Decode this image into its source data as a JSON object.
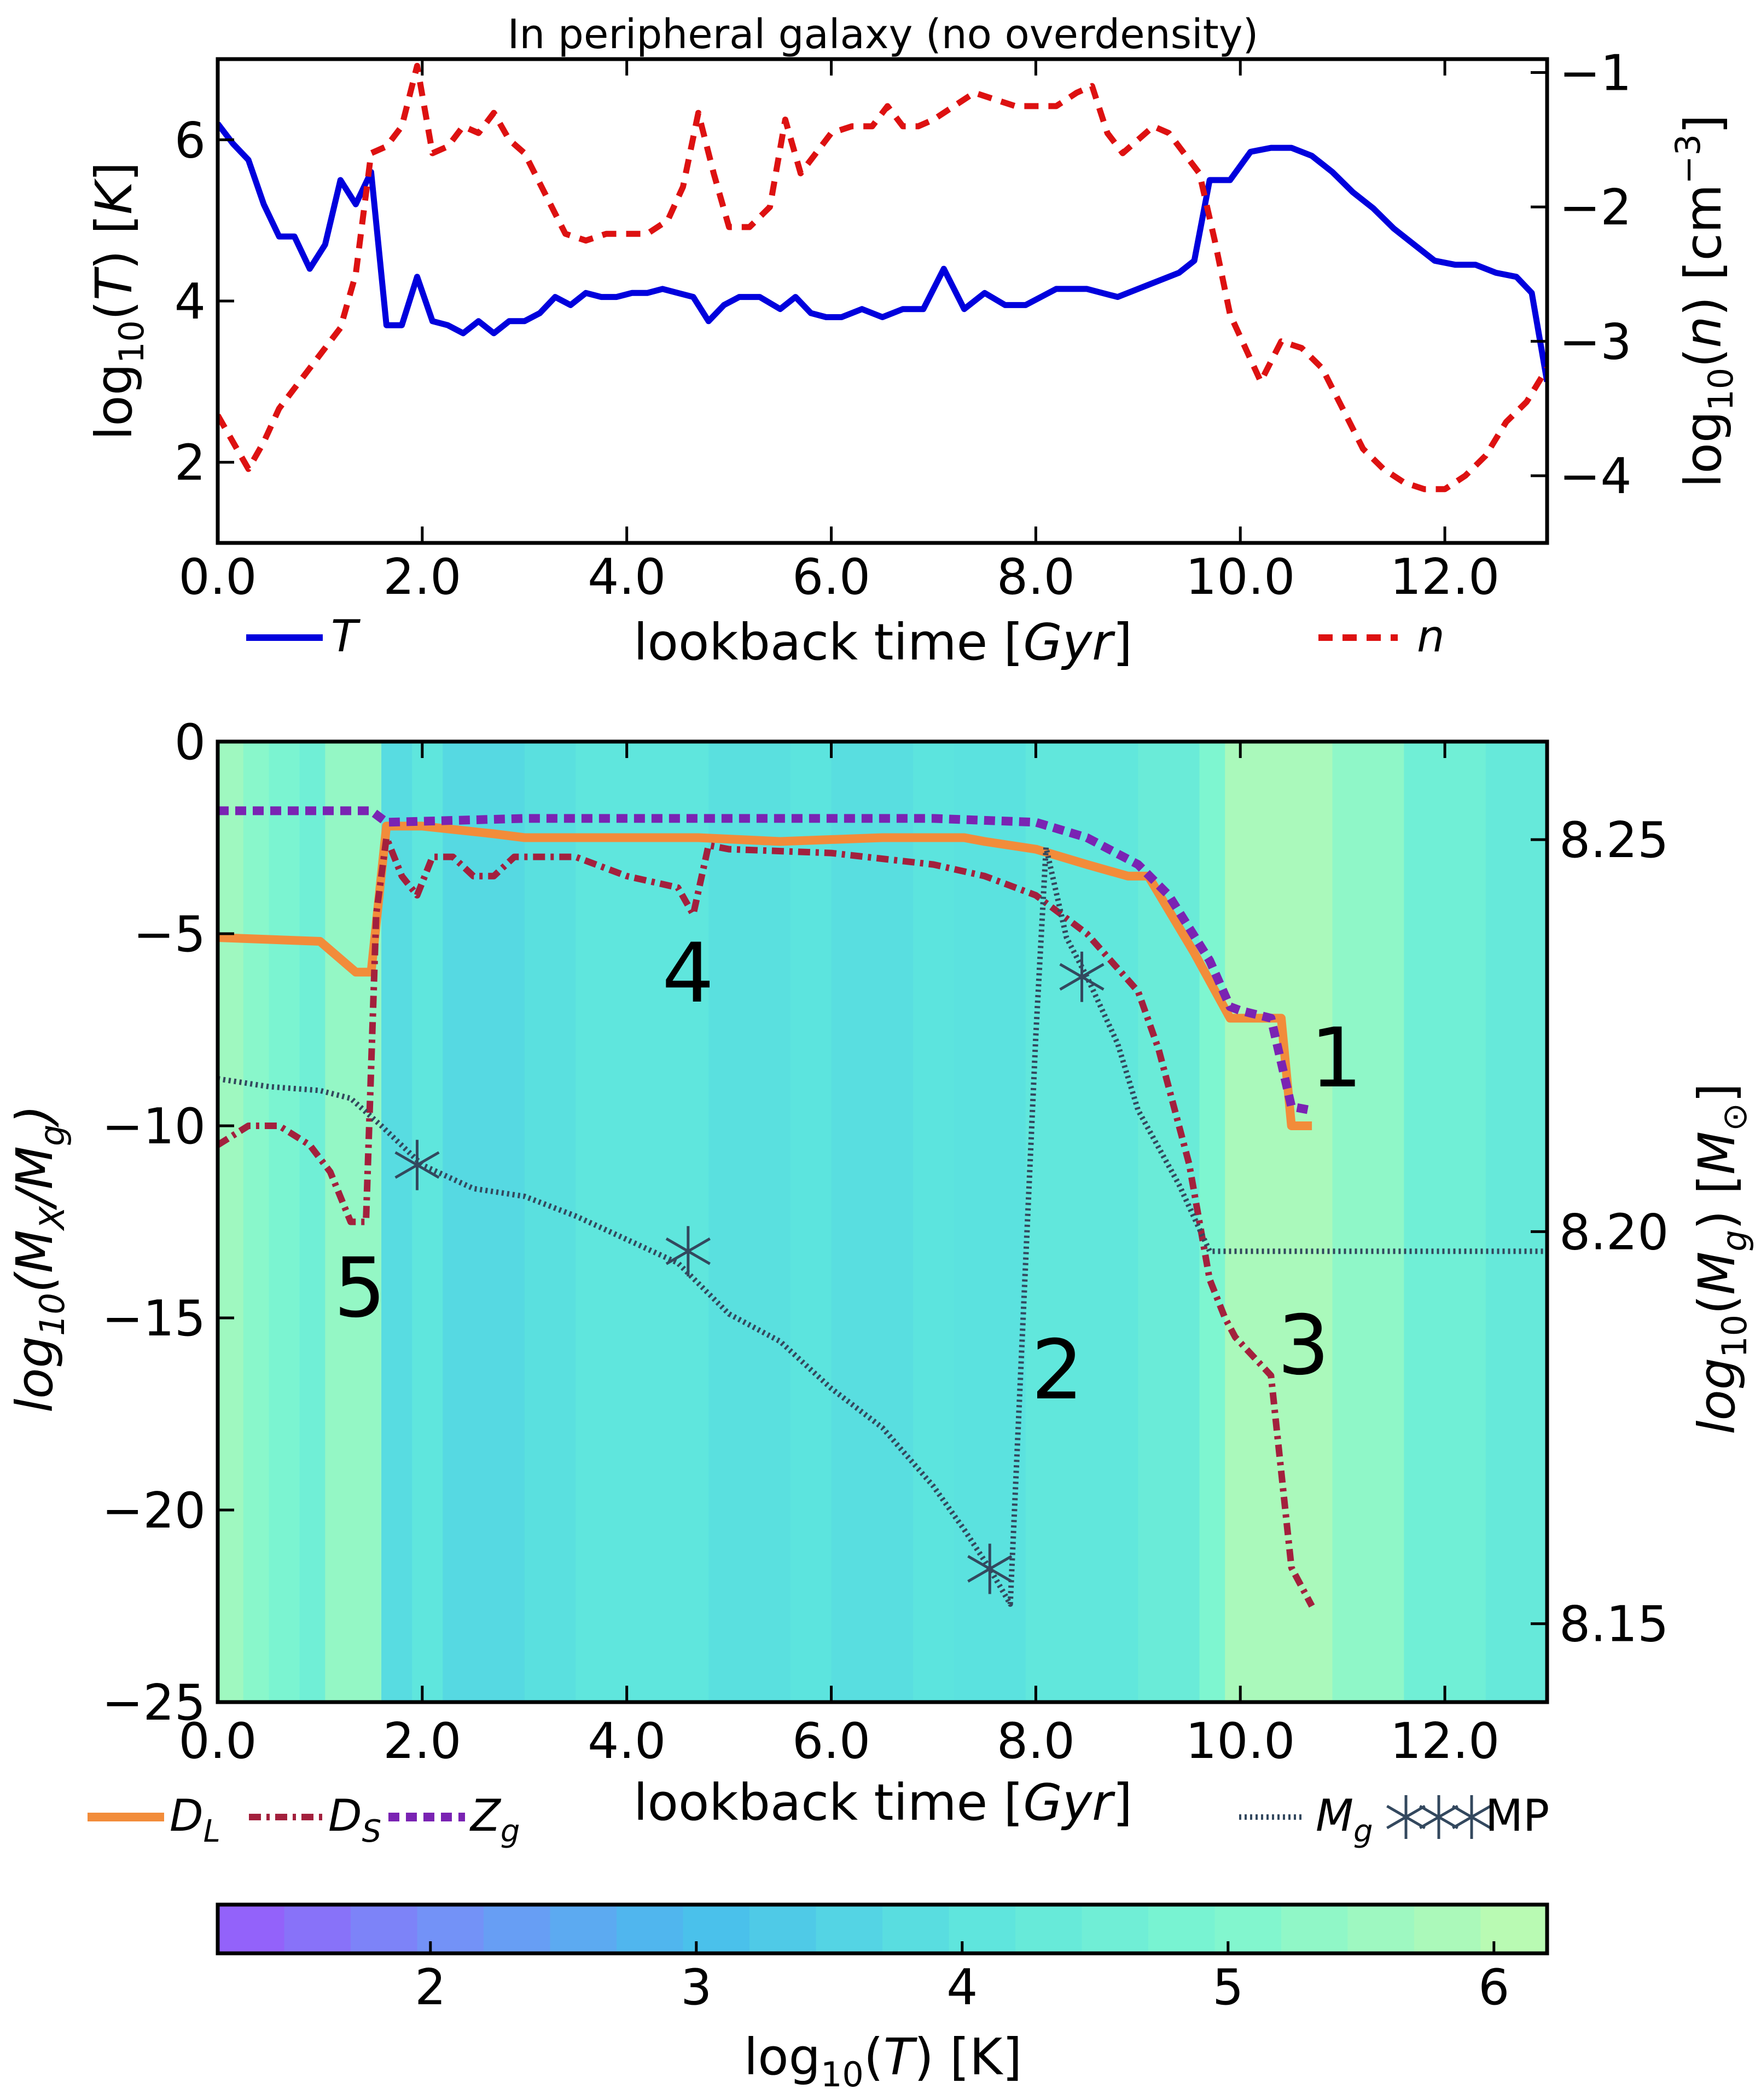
{
  "chart_data": [
    {
      "type": "line",
      "title": "In peripheral galaxy (no overdensity)",
      "xlabel": "lookback time [Gyr]",
      "ylabel": "log10(T) [K]",
      "y2label": "log10(n) [cm^-3]",
      "xlim": [
        0,
        13
      ],
      "ylim": [
        1,
        7
      ],
      "y2lim": [
        -4.5,
        -0.9
      ],
      "xticks": [
        "0.0",
        "2.0",
        "4.0",
        "6.0",
        "8.0",
        "10.0",
        "12.0"
      ],
      "yticks": [
        "2",
        "4",
        "6"
      ],
      "y2ticks": [
        "−1",
        "−2",
        "−3",
        "−4"
      ],
      "grid": false,
      "legend": "below",
      "series": [
        {
          "name": "T",
          "axis": "left",
          "color": "#0000dd",
          "style": "solid",
          "x": [
            0,
            0.15,
            0.3,
            0.45,
            0.6,
            0.75,
            0.9,
            1.05,
            1.2,
            1.35,
            1.5,
            1.65,
            1.8,
            1.95,
            2.1,
            2.25,
            2.4,
            2.55,
            2.7,
            2.85,
            3.0,
            3.15,
            3.3,
            3.45,
            3.6,
            3.75,
            3.9,
            4.05,
            4.2,
            4.35,
            4.5,
            4.65,
            4.8,
            4.95,
            5.1,
            5.3,
            5.5,
            5.65,
            5.8,
            5.95,
            6.1,
            6.3,
            6.5,
            6.7,
            6.9,
            7.1,
            7.3,
            7.5,
            7.7,
            7.9,
            8.2,
            8.5,
            8.8,
            9.1,
            9.4,
            9.55,
            9.7,
            9.9,
            10.1,
            10.3,
            10.5,
            10.7,
            10.9,
            11.1,
            11.3,
            11.5,
            11.7,
            11.9,
            12.1,
            12.3,
            12.5,
            12.7,
            12.85,
            13.0
          ],
          "values": [
            6.2,
            5.95,
            5.75,
            5.2,
            4.8,
            4.8,
            4.4,
            4.7,
            5.5,
            5.2,
            5.6,
            3.7,
            3.7,
            4.3,
            3.75,
            3.7,
            3.6,
            3.75,
            3.6,
            3.75,
            3.75,
            3.85,
            4.05,
            3.95,
            4.1,
            4.05,
            4.05,
            4.1,
            4.1,
            4.15,
            4.1,
            4.05,
            3.75,
            3.95,
            4.05,
            4.05,
            3.9,
            4.05,
            3.85,
            3.8,
            3.8,
            3.9,
            3.8,
            3.9,
            3.9,
            4.4,
            3.9,
            4.1,
            3.95,
            3.95,
            4.15,
            4.15,
            4.05,
            4.2,
            4.35,
            4.5,
            5.5,
            5.5,
            5.85,
            5.9,
            5.9,
            5.8,
            5.6,
            5.35,
            5.15,
            4.9,
            4.7,
            4.5,
            4.45,
            4.45,
            4.35,
            4.3,
            4.1,
            3.0
          ]
        },
        {
          "name": "n",
          "axis": "right",
          "color": "#dd1111",
          "style": "dashed",
          "x": [
            0,
            0.15,
            0.3,
            0.45,
            0.6,
            0.75,
            0.9,
            1.05,
            1.2,
            1.35,
            1.5,
            1.65,
            1.8,
            1.95,
            2.1,
            2.25,
            2.4,
            2.55,
            2.7,
            2.85,
            3.0,
            3.2,
            3.4,
            3.6,
            3.8,
            4.0,
            4.2,
            4.4,
            4.55,
            4.7,
            4.85,
            5.0,
            5.2,
            5.4,
            5.55,
            5.7,
            5.85,
            6.0,
            6.2,
            6.4,
            6.55,
            6.7,
            6.85,
            7.0,
            7.2,
            7.4,
            7.6,
            7.8,
            8.0,
            8.2,
            8.4,
            8.55,
            8.7,
            8.85,
            9.0,
            9.15,
            9.3,
            9.45,
            9.6,
            9.75,
            9.9,
            10.05,
            10.2,
            10.4,
            10.6,
            10.8,
            11.0,
            11.2,
            11.4,
            11.6,
            11.8,
            12.0,
            12.2,
            12.4,
            12.6,
            12.8,
            13.0
          ],
          "values": [
            -3.55,
            -3.75,
            -3.95,
            -3.75,
            -3.5,
            -3.35,
            -3.2,
            -3.05,
            -2.9,
            -2.5,
            -1.6,
            -1.55,
            -1.4,
            -0.95,
            -1.6,
            -1.55,
            -1.4,
            -1.45,
            -1.3,
            -1.5,
            -1.6,
            -1.9,
            -2.2,
            -2.25,
            -2.2,
            -2.2,
            -2.2,
            -2.1,
            -1.85,
            -1.3,
            -1.75,
            -2.15,
            -2.15,
            -2.0,
            -1.35,
            -1.75,
            -1.6,
            -1.45,
            -1.4,
            -1.4,
            -1.25,
            -1.4,
            -1.4,
            -1.35,
            -1.25,
            -1.15,
            -1.2,
            -1.25,
            -1.25,
            -1.25,
            -1.15,
            -1.1,
            -1.45,
            -1.6,
            -1.5,
            -1.4,
            -1.45,
            -1.6,
            -1.75,
            -2.25,
            -2.8,
            -3.05,
            -3.3,
            -3.0,
            -3.05,
            -3.2,
            -3.5,
            -3.8,
            -3.95,
            -4.05,
            -4.1,
            -4.1,
            -4.0,
            -3.85,
            -3.6,
            -3.45,
            -3.2
          ]
        }
      ]
    },
    {
      "type": "line",
      "xlabel": "lookback time [Gyr]",
      "ylabel": "log10(MX/Mg)",
      "y2label": "log10(Mg) [M⊙]",
      "xlim": [
        0,
        13
      ],
      "ylim": [
        -25,
        0
      ],
      "y2lim": [
        8.14,
        8.2625
      ],
      "xticks": [
        "0.0",
        "2.0",
        "4.0",
        "6.0",
        "8.0",
        "10.0",
        "12.0"
      ],
      "yticks": [
        "0",
        "−5",
        "−10",
        "−15",
        "−20",
        "−25"
      ],
      "y2ticks": [
        "8.25",
        "8.20",
        "8.15"
      ],
      "grid": false,
      "legend": "below",
      "background": "log10(T) colour bands along lookback time",
      "annotations": [
        "1",
        "2",
        "3",
        "4",
        "5"
      ],
      "series": [
        {
          "name": "D_L",
          "axis": "left",
          "color": "#f28c3a",
          "style": "solid",
          "x": [
            0,
            1.0,
            1.35,
            1.5,
            1.65,
            2.0,
            2.7,
            3.0,
            4.0,
            4.6,
            4.7,
            5.5,
            6.5,
            7.0,
            7.3,
            7.5,
            8.0,
            8.5,
            8.9,
            9.1,
            9.55,
            9.9,
            10.0,
            10.4,
            10.5,
            10.7
          ],
          "values": [
            -5.1,
            -5.2,
            -6.0,
            -6.0,
            -2.2,
            -2.2,
            -2.4,
            -2.5,
            -2.5,
            -2.5,
            -2.5,
            -2.6,
            -2.5,
            -2.5,
            -2.5,
            -2.6,
            -2.8,
            -3.2,
            -3.5,
            -3.5,
            -5.5,
            -7.2,
            -7.2,
            -7.2,
            -10.0,
            -10.0
          ]
        },
        {
          "name": "D_S",
          "axis": "left",
          "color": "#a3203d",
          "style": "dashdot",
          "x": [
            0,
            0.3,
            0.6,
            0.9,
            1.1,
            1.3,
            1.45,
            1.55,
            1.65,
            1.8,
            1.95,
            2.1,
            2.3,
            2.5,
            2.7,
            2.9,
            3.5,
            4.0,
            4.5,
            4.65,
            4.8,
            5.0,
            6.0,
            7.0,
            7.5,
            8.0,
            8.5,
            9.0,
            9.2,
            9.5,
            9.7,
            9.85,
            9.95,
            10.3,
            10.5,
            10.6,
            10.7
          ],
          "values": [
            -10.5,
            -10.0,
            -10.0,
            -10.5,
            -11.2,
            -12.5,
            -12.5,
            -4.5,
            -2.5,
            -3.5,
            -4.0,
            -3.0,
            -3.0,
            -3.5,
            -3.5,
            -3.0,
            -3.0,
            -3.5,
            -3.8,
            -4.5,
            -2.7,
            -2.8,
            -2.9,
            -3.2,
            -3.5,
            -4.0,
            -5.0,
            -6.5,
            -8.0,
            -11.0,
            -14.0,
            -15.0,
            -15.5,
            -16.5,
            -21.5,
            -22.0,
            -22.5
          ]
        },
        {
          "name": "Z_g",
          "axis": "left",
          "color": "#7a23b3",
          "style": "dashed",
          "x": [
            0,
            1.5,
            1.65,
            3.0,
            5.0,
            7.0,
            8.0,
            8.5,
            9.0,
            9.3,
            9.7,
            9.9,
            10.0,
            10.3,
            10.5,
            10.7
          ],
          "values": [
            -1.8,
            -1.8,
            -2.1,
            -2.0,
            -2.0,
            -2.0,
            -2.1,
            -2.5,
            -3.2,
            -4.0,
            -5.7,
            -6.9,
            -7.0,
            -7.2,
            -9.5,
            -9.6
          ]
        },
        {
          "name": "M_g",
          "axis": "right",
          "color": "#33485e",
          "style": "dotted",
          "x": [
            0,
            0.5,
            1.0,
            1.3,
            1.6,
            2.0,
            2.5,
            3.0,
            3.5,
            4.0,
            4.5,
            5.0,
            5.5,
            6.0,
            6.5,
            7.0,
            7.3,
            7.55,
            7.75,
            8.0,
            8.1,
            8.3,
            8.5,
            8.8,
            9.0,
            9.4,
            9.7,
            10.0,
            11.0,
            12.0,
            13.0
          ],
          "values": [
            8.2195,
            8.2185,
            8.218,
            8.217,
            8.2135,
            8.2085,
            8.2055,
            8.2045,
            8.202,
            8.199,
            8.196,
            8.1895,
            8.186,
            8.18,
            8.175,
            8.1675,
            8.162,
            8.157,
            8.1525,
            8.225,
            8.249,
            8.2375,
            8.2325,
            8.224,
            8.2155,
            8.206,
            8.1975,
            8.1975,
            8.1975,
            8.1975,
            8.1975
          ]
        },
        {
          "name": "MP",
          "axis": "right",
          "color": "#33485e",
          "style": "star-markers",
          "x": [
            1.95,
            4.6,
            7.55,
            8.45
          ],
          "values": [
            8.2085,
            8.1975,
            8.157,
            8.2325
          ]
        }
      ]
    },
    {
      "type": "colorbar",
      "label": "log10(T) [K]",
      "range": [
        1.2,
        6.2
      ],
      "ticks": [
        "2",
        "3",
        "4",
        "5",
        "6"
      ],
      "colormap": "rainbow-light",
      "orientation": "horizontal"
    }
  ],
  "background_temperature_bands": [
    {
      "x0": 0,
      "x1": 0.25,
      "t": 5.6
    },
    {
      "x0": 0.25,
      "x1": 0.5,
      "t": 5.2
    },
    {
      "x0": 0.5,
      "x1": 0.8,
      "t": 4.9
    },
    {
      "x0": 0.8,
      "x1": 1.05,
      "t": 4.6
    },
    {
      "x0": 1.05,
      "x1": 1.6,
      "t": 5.4
    },
    {
      "x0": 1.6,
      "x1": 1.9,
      "t": 3.8
    },
    {
      "x0": 1.9,
      "x1": 2.2,
      "t": 4.1
    },
    {
      "x0": 2.2,
      "x1": 3.0,
      "t": 3.7
    },
    {
      "x0": 3.0,
      "x1": 3.5,
      "t": 3.9
    },
    {
      "x0": 3.5,
      "x1": 4.8,
      "t": 4.1
    },
    {
      "x0": 4.8,
      "x1": 5.6,
      "t": 3.9
    },
    {
      "x0": 5.6,
      "x1": 6.0,
      "t": 4.0
    },
    {
      "x0": 6.0,
      "x1": 6.8,
      "t": 3.85
    },
    {
      "x0": 6.8,
      "x1": 7.2,
      "t": 4.0
    },
    {
      "x0": 7.2,
      "x1": 7.9,
      "t": 3.95
    },
    {
      "x0": 7.9,
      "x1": 9.0,
      "t": 4.15
    },
    {
      "x0": 9.0,
      "x1": 9.6,
      "t": 4.4
    },
    {
      "x0": 9.6,
      "x1": 9.85,
      "t": 5.0
    },
    {
      "x0": 9.85,
      "x1": 10.9,
      "t": 5.8
    },
    {
      "x0": 10.9,
      "x1": 11.6,
      "t": 5.3
    },
    {
      "x0": 11.6,
      "x1": 12.4,
      "t": 4.6
    },
    {
      "x0": 12.4,
      "x1": 13.0,
      "t": 4.3
    }
  ],
  "colors": {
    "T": "#0000dd",
    "n": "#dd1111",
    "D_L": "#f28c3a",
    "D_S": "#a3203d",
    "Z_g": "#7a23b3",
    "M_g": "#33485e"
  }
}
